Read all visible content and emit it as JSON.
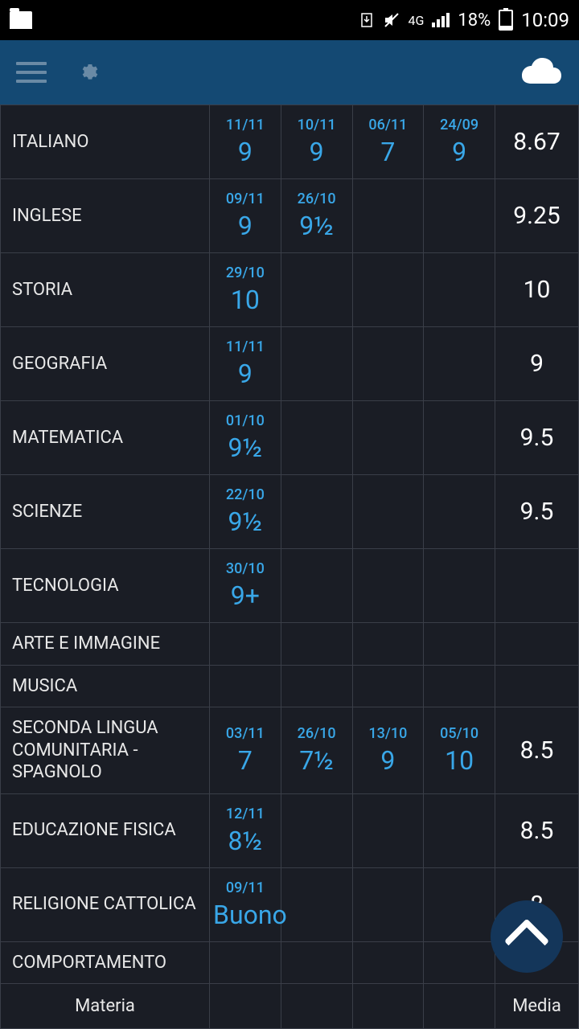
{
  "status": {
    "network": "4G",
    "battery_pct": "18%",
    "time": "10:09"
  },
  "colors": {
    "bg": "#1a1d25",
    "appbar": "#144973",
    "border": "#3a3e48",
    "accent": "#39a7e8",
    "text": "#e8e8e8"
  },
  "columns": {
    "subject_label": "Materia",
    "media_label": "Media"
  },
  "subjects": [
    {
      "name": "ITALIANO",
      "grades": [
        {
          "date": "11/11",
          "value": "9"
        },
        {
          "date": "10/11",
          "value": "9"
        },
        {
          "date": "06/11",
          "value": "7"
        },
        {
          "date": "24/09",
          "value": "9"
        }
      ],
      "media": "8.67"
    },
    {
      "name": "INGLESE",
      "grades": [
        {
          "date": "09/11",
          "value": "9"
        },
        {
          "date": "26/10",
          "value": "9½"
        }
      ],
      "media": "9.25"
    },
    {
      "name": "STORIA",
      "grades": [
        {
          "date": "29/10",
          "value": "10"
        }
      ],
      "media": "10"
    },
    {
      "name": "GEOGRAFIA",
      "grades": [
        {
          "date": "11/11",
          "value": "9"
        }
      ],
      "media": "9"
    },
    {
      "name": "MATEMATICA",
      "grades": [
        {
          "date": "01/10",
          "value": "9½"
        }
      ],
      "media": "9.5"
    },
    {
      "name": "SCIENZE",
      "grades": [
        {
          "date": "22/10",
          "value": "9½"
        }
      ],
      "media": "9.5"
    },
    {
      "name": "TECNOLOGIA",
      "grades": [
        {
          "date": "30/10",
          "value": "9+"
        }
      ],
      "media": ""
    },
    {
      "name": "ARTE E IMMAGINE",
      "grades": [],
      "media": ""
    },
    {
      "name": "MUSICA",
      "grades": [],
      "media": ""
    },
    {
      "name": "SECONDA LINGUA COMUNITARIA - SPAGNOLO",
      "grades": [
        {
          "date": "03/11",
          "value": "7"
        },
        {
          "date": "26/10",
          "value": "7½"
        },
        {
          "date": "13/10",
          "value": "9"
        },
        {
          "date": "05/10",
          "value": "10"
        }
      ],
      "media": "8.5"
    },
    {
      "name": "EDUCAZIONE FISICA",
      "grades": [
        {
          "date": "12/11",
          "value": "8½"
        }
      ],
      "media": "8.5"
    },
    {
      "name": "RELIGIONE CATTOLICA",
      "grades": [
        {
          "date": "09/11",
          "value": "Buono"
        }
      ],
      "media": "8"
    },
    {
      "name": "COMPORTAMENTO",
      "grades": [],
      "media": ""
    }
  ]
}
